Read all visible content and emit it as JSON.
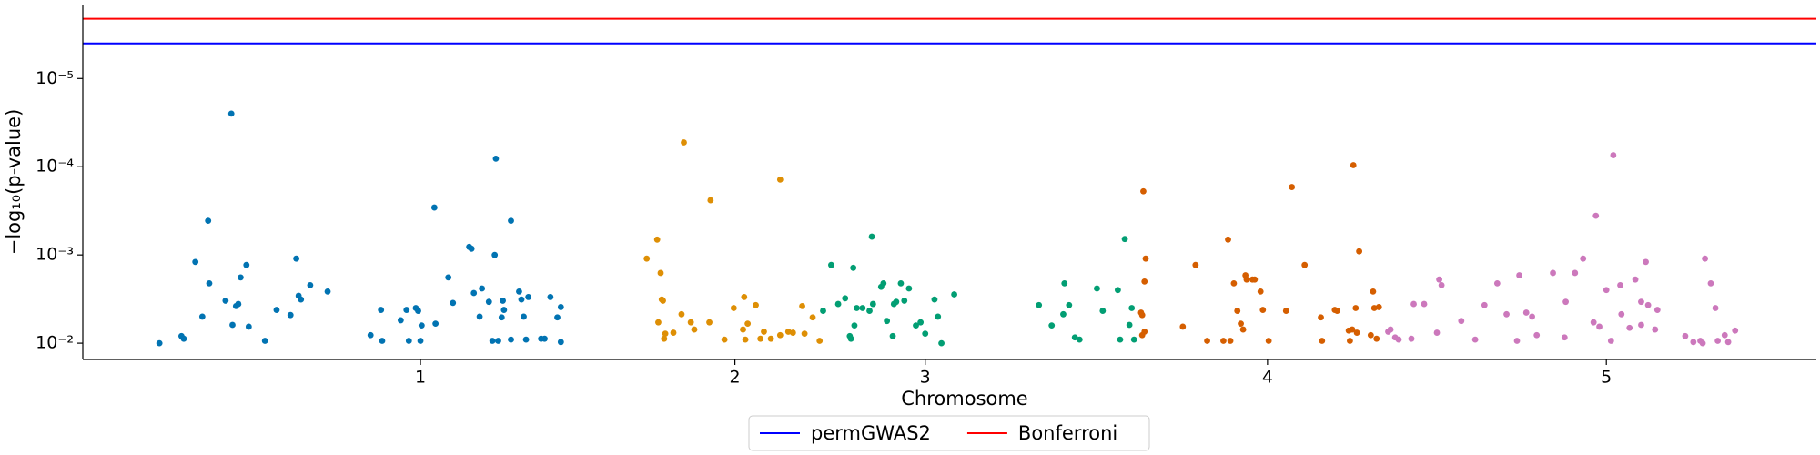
{
  "chart_data": {
    "type": "scatter",
    "xlabel": "Chromosome",
    "ylabel": "−log₁₀(p-value)",
    "xlim": [
      71,
      1565
    ],
    "ylim": [
      0.0153,
      1.45e-06
    ],
    "log_scale_y": true,
    "grid": false,
    "legend_position": "bottom",
    "xticks": [
      {
        "value": 362,
        "label": "1"
      },
      {
        "value": 633,
        "label": "2"
      },
      {
        "value": 797,
        "label": "3"
      },
      {
        "value": 1092,
        "label": "4"
      },
      {
        "value": 1384,
        "label": "5"
      }
    ],
    "yticks": [
      {
        "value": 0.01,
        "label": "10⁻²"
      },
      {
        "value": 0.001,
        "label": "10⁻³"
      },
      {
        "value": 0.0001,
        "label": "10⁻⁴"
      },
      {
        "value": 1e-05,
        "label": "10⁻⁵"
      }
    ],
    "hlines": [
      {
        "name": "permGWAS2",
        "color": "#0000ff",
        "value": 4e-06
      },
      {
        "name": "Bonferroni",
        "color": "#ff0000",
        "value": 2.1e-06
      }
    ],
    "series": [
      {
        "color": "#0173b2",
        "x": [
          137,
          156,
          158,
          168,
          174,
          179,
          180,
          194,
          199,
          200,
          203,
          205,
          207,
          212,
          214,
          228,
          238,
          250,
          255,
          257,
          259,
          267,
          282,
          319,
          328,
          329,
          345,
          350,
          352,
          358,
          360,
          362,
          363,
          374,
          375,
          386,
          390,
          404,
          406,
          408,
          413,
          415,
          421,
          424,
          426,
          427,
          429,
          432,
          433,
          434,
          440,
          440,
          447,
          449,
          451,
          453,
          455,
          466,
          469,
          474,
          480,
          483,
          483
        ],
        "values": [
          0.01,
          0.0083,
          0.0089,
          0.0012,
          0.005,
          0.00041,
          0.0021,
          0.0033,
          2.5e-05,
          0.0062,
          0.0038,
          0.0036,
          0.0018,
          0.0013,
          0.0065,
          0.0094,
          0.0042,
          0.0048,
          0.0011,
          0.0029,
          0.0032,
          0.0022,
          0.0026,
          0.0081,
          0.0042,
          0.0094,
          0.0055,
          0.0042,
          0.0094,
          0.004,
          0.0043,
          0.0094,
          0.0063,
          0.00029,
          0.006,
          0.0018,
          0.0035,
          0.00081,
          0.00085,
          0.0027,
          0.005,
          0.0024,
          0.0034,
          0.0094,
          0.001,
          8.1e-05,
          0.0094,
          0.0051,
          0.0033,
          0.0042,
          0.00041,
          0.0091,
          0.0026,
          0.0032,
          0.005,
          0.0091,
          0.003,
          0.0089,
          0.0089,
          0.003,
          0.0051,
          0.0039,
          0.0097
        ]
      },
      {
        "color": "#de8f05",
        "x": [
          557,
          566,
          567,
          569,
          570,
          571,
          572,
          573,
          580,
          587,
          589,
          595,
          598,
          611,
          612,
          624,
          632,
          640,
          641,
          642,
          644,
          651,
          655,
          658,
          664,
          672,
          672,
          679,
          683,
          691,
          693,
          700,
          706
        ],
        "values": [
          0.0011,
          0.00067,
          0.0058,
          0.0016,
          0.0032,
          0.0033,
          0.0089,
          0.0078,
          0.0076,
          0.0047,
          5.3e-05,
          0.0058,
          0.007,
          0.0058,
          0.00024,
          0.0091,
          0.004,
          0.007,
          0.003,
          0.0091,
          0.006,
          0.0037,
          0.0089,
          0.0074,
          0.0089,
          0.00014,
          0.0081,
          0.0074,
          0.0076,
          0.0038,
          0.0078,
          0.0051,
          0.0094
        ]
      },
      {
        "color": "#029e73",
        "x": [
          709,
          716,
          722,
          728,
          732,
          733,
          735,
          736,
          738,
          743,
          749,
          751,
          752,
          759,
          761,
          764,
          769,
          770,
          772,
          776,
          779,
          783,
          789,
          793,
          797,
          805,
          808,
          811,
          822,
          895,
          906,
          916,
          917,
          921,
          926,
          930,
          945,
          950,
          963,
          965,
          969,
          973,
          975,
          977
        ],
        "values": [
          0.0043,
          0.0013,
          0.0036,
          0.0031,
          0.0083,
          0.0089,
          0.0014,
          0.0063,
          0.004,
          0.004,
          0.0043,
          0.00062,
          0.0036,
          0.0023,
          0.0021,
          0.0056,
          0.0083,
          0.0036,
          0.0034,
          0.0021,
          0.0033,
          0.0024,
          0.0063,
          0.0058,
          0.0078,
          0.0032,
          0.005,
          0.01,
          0.0028,
          0.0037,
          0.0063,
          0.0047,
          0.0021,
          0.0037,
          0.0086,
          0.0091,
          0.0024,
          0.0043,
          0.0025,
          0.0091,
          0.00066,
          0.0062,
          0.004,
          0.0091
        ]
      },
      {
        "color": "#d55e00",
        "x": [
          983,
          984,
          984,
          986,
          986,
          985,
          987,
          1019,
          1030,
          1040,
          1054,
          1058,
          1060,
          1063,
          1066,
          1069,
          1071,
          1073,
          1074,
          1079,
          1081,
          1086,
          1088,
          1093,
          1108,
          1113,
          1124,
          1138,
          1139,
          1150,
          1152,
          1162,
          1163,
          1165,
          1166,
          1168,
          1169,
          1171,
          1181,
          1183,
          1184,
          1186,
          1188
        ],
        "values": [
          0.0045,
          0.0048,
          0.0081,
          0.0074,
          0.002,
          0.00019,
          0.0011,
          0.0065,
          0.0013,
          0.0094,
          0.0094,
          0.00067,
          0.0094,
          0.0021,
          0.0043,
          0.006,
          0.007,
          0.0017,
          0.0019,
          0.0019,
          0.0019,
          0.0026,
          0.0042,
          0.0094,
          0.0043,
          0.00017,
          0.0013,
          0.0051,
          0.0094,
          0.0042,
          0.0043,
          0.0072,
          0.0094,
          0.007,
          9.6e-05,
          0.004,
          0.0076,
          0.00091,
          0.0081,
          0.0026,
          0.004,
          0.0089,
          0.0039
        ]
      },
      {
        "color": "#cc78bc",
        "x": [
          1196,
          1198,
          1202,
          1205,
          1216,
          1218,
          1227,
          1238,
          1240,
          1242,
          1259,
          1271,
          1279,
          1290,
          1298,
          1307,
          1309,
          1315,
          1320,
          1324,
          1338,
          1348,
          1349,
          1357,
          1364,
          1373,
          1375,
          1378,
          1384,
          1388,
          1390,
          1396,
          1397,
          1404,
          1409,
          1414,
          1414,
          1418,
          1420,
          1426,
          1428,
          1452,
          1459,
          1465,
          1467,
          1469,
          1474,
          1478,
          1480,
          1486,
          1489,
          1495
        ],
        "values": [
          0.0074,
          0.007,
          0.0086,
          0.0091,
          0.0089,
          0.0036,
          0.0036,
          0.0076,
          0.0019,
          0.0022,
          0.0056,
          0.0091,
          0.0037,
          0.0021,
          0.0047,
          0.0094,
          0.0017,
          0.0045,
          0.005,
          0.0081,
          0.0016,
          0.0086,
          0.0034,
          0.0016,
          0.0011,
          0.0058,
          0.00036,
          0.0065,
          0.0025,
          0.0094,
          7.4e-05,
          0.0022,
          0.0047,
          0.0067,
          0.0019,
          0.0034,
          0.0062,
          0.0012,
          0.0037,
          0.007,
          0.0042,
          0.0083,
          0.0097,
          0.0094,
          0.01,
          0.0011,
          0.0021,
          0.004,
          0.0094,
          0.0081,
          0.0097,
          0.0072
        ]
      }
    ]
  }
}
